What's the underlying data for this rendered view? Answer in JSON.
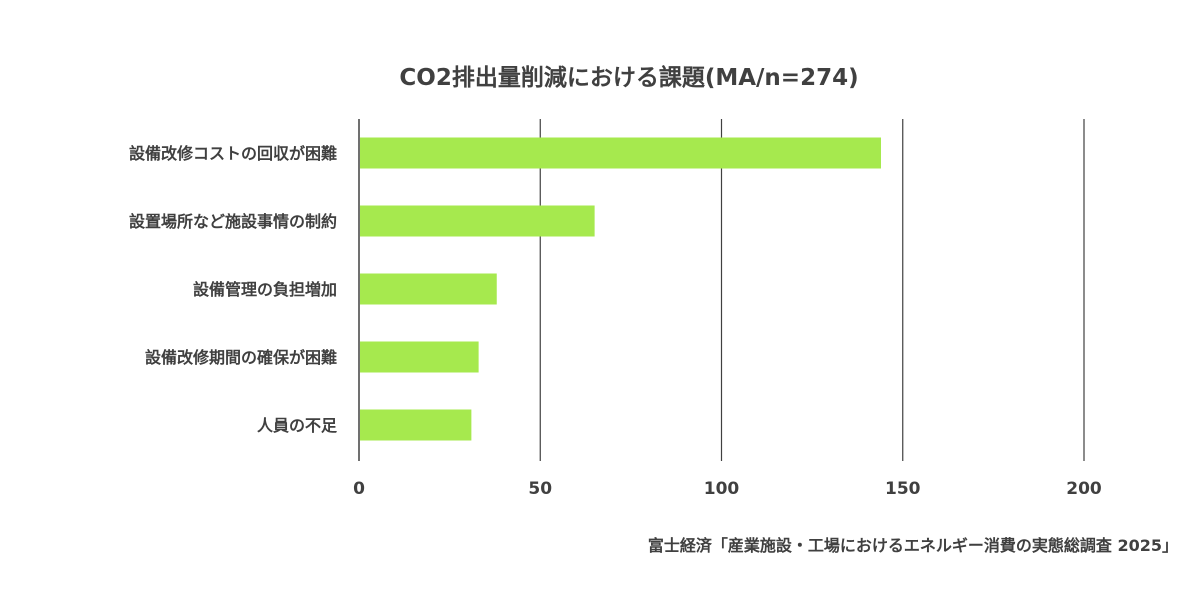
{
  "chart_data": {
    "type": "bar",
    "orientation": "horizontal",
    "title": "CO2排出量削減における課題(MA/n=274)",
    "categories": [
      "設備改修コストの回収が困難",
      "設置場所など施設事情の制約",
      "設備管理の負担増加",
      "設備改修期間の確保が困難",
      "人員の不足"
    ],
    "values": [
      144,
      65,
      38,
      33,
      31
    ],
    "xlim": [
      0,
      200
    ],
    "xticks": [
      "0",
      "50",
      "100",
      "150",
      "200"
    ],
    "grid": "vertical",
    "bar_color": "#a6e94e",
    "axis_color": "#404040"
  },
  "source": "富士経済「産業施設・工場におけるエネルギー消費の実態総調査 2025」"
}
